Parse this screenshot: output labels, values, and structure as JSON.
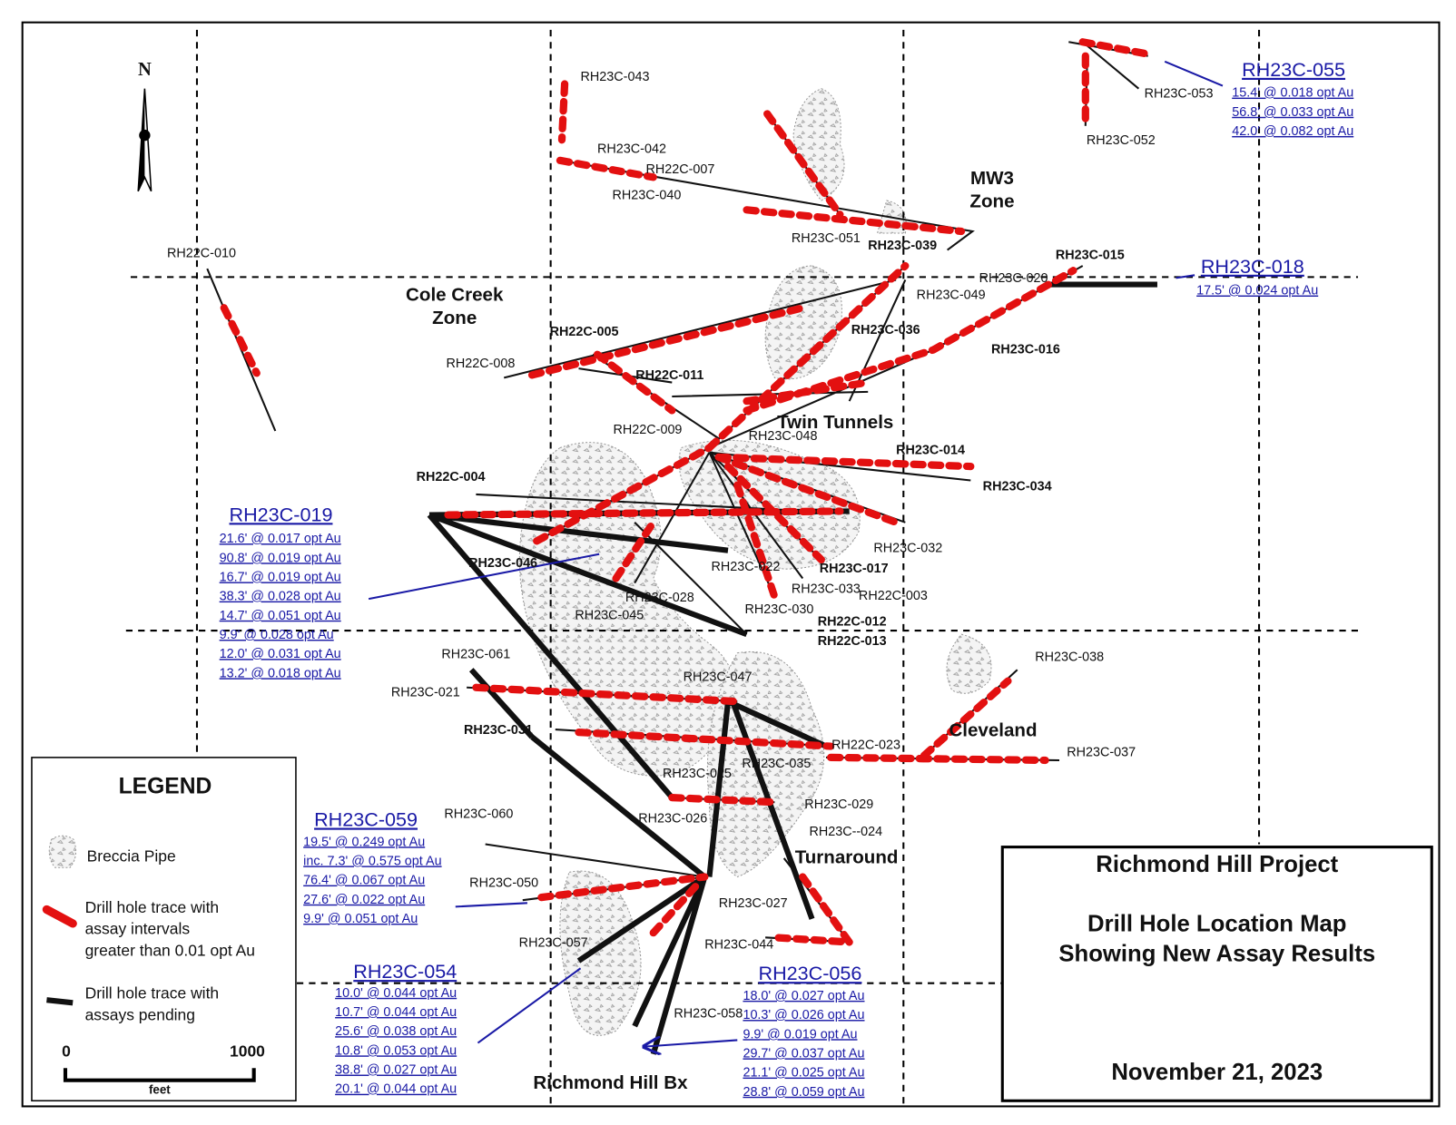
{
  "north": "N",
  "zones": {
    "cole_creek": [
      "Cole Creek",
      "Zone"
    ],
    "mw3": [
      "MW3",
      "Zone"
    ],
    "twin_tunnels": "Twin Tunnels",
    "cleveland": "Cleveland",
    "turnaround": "Turnaround",
    "richmond_hill_bx": "Richmond Hill Bx"
  },
  "holes": [
    "RH23C-043",
    "RH23C-042",
    "RH22C-007",
    "RH23C-040",
    "RH23C-051",
    "RH23C-039",
    "RH23C-049",
    "RH22C-010",
    "RH22C-005",
    "RH22C-008",
    "RH22C-011",
    "RH22C-009",
    "RH23C-048",
    "RH23C-036",
    "RH23C-020",
    "RH23C-015",
    "RH23C-016",
    "RH23C-014",
    "RH23C-034",
    "RH22C-004",
    "RH23C-046",
    "RH23C-022",
    "RH23C-017",
    "RH23C-032",
    "RH23C-033",
    "RH22C-003",
    "RH23C-030",
    "RH23C-028",
    "RH23C-045",
    "RH22C-012",
    "RH22C-013",
    "RH23C-061",
    "RH23C-047",
    "RH23C-021",
    "RH23C-031",
    "RH22C-023",
    "RH23C-037",
    "RH23C-038",
    "RH23C-035",
    "RH23C-025",
    "RH23C-029",
    "RH23C-060",
    "RH23C-026",
    "RH23C--024",
    "RH23C-050",
    "RH23C-027",
    "RH23C-057",
    "RH23C-044",
    "RH23C-058",
    "RH23C-053",
    "RH23C-052"
  ],
  "callouts": [
    {
      "hole": "RH23C-055",
      "intervals": [
        "15.4' @ 0.018 opt Au",
        "56.8' @ 0.033 opt Au",
        "42.0' @ 0.082 opt Au"
      ]
    },
    {
      "hole": "RH23C-018",
      "intervals": [
        "17.5' @ 0.024 opt Au"
      ]
    },
    {
      "hole": "RH23C-019",
      "intervals": [
        "21.6' @ 0.017 opt Au",
        "90.8' @ 0.019 opt Au",
        "16.7' @ 0.019 opt Au",
        "38.3' @ 0.028 opt Au",
        "14.7' @ 0.051 opt Au",
        "9.9' @ 0.028 opt Au",
        "12.0' @ 0.031 opt Au",
        "13.2' @ 0.018 opt Au"
      ]
    },
    {
      "hole": "RH23C-059",
      "intervals": [
        "19.5' @ 0.249 opt Au",
        "inc. 7.3' @ 0.575 opt Au",
        "76.4' @ 0.067 opt Au",
        "27.6' @ 0.022 opt Au",
        "9.9' @ 0.051 opt Au"
      ]
    },
    {
      "hole": "RH23C-054",
      "intervals": [
        "10.0' @ 0.044 opt Au",
        "10.7' @ 0.044 opt Au",
        "25.6' @ 0.038 opt Au",
        "10.8' @ 0.053 opt Au",
        "38.8' @ 0.027 opt Au",
        "20.1' @ 0.044 opt Au"
      ]
    },
    {
      "hole": "RH23C-056",
      "intervals": [
        "18.0' @ 0.027 opt Au",
        "10.3' @ 0.026 opt Au",
        "9.9' @ 0.019 opt Au",
        "29.7' @ 0.037 opt Au",
        "21.1' @ 0.025 opt Au",
        "28.8' @ 0.059 opt Au"
      ]
    }
  ],
  "legend": {
    "title": "LEGEND",
    "breccia": "Breccia  Pipe",
    "assay": [
      "Drill hole trace with",
      "assay intervals",
      "greater than 0.01 opt Au"
    ],
    "pending": [
      "Drill hole trace with",
      "assays pending"
    ],
    "scale": {
      "start": "0",
      "end": "1000",
      "unit": "feet"
    }
  },
  "title_block": {
    "project": "Richmond Hill Project",
    "map": [
      "Drill Hole Location Map",
      "Showing New Assay Results"
    ],
    "date": "November 21, 2023"
  }
}
